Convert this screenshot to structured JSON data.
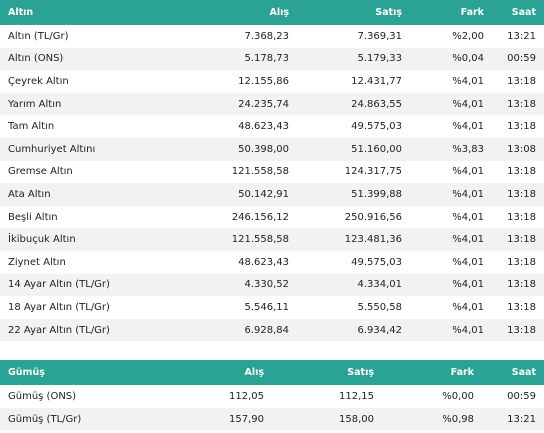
{
  "gold": {
    "headers": [
      "Altın",
      "Alış",
      "Satış",
      "Fark",
      "Saat"
    ],
    "rows": [
      [
        "Altın (TL/Gr)",
        "7.368,23",
        "7.369,31",
        "%2,00",
        "13:21"
      ],
      [
        "Altın (ONS)",
        "5.178,73",
        "5.179,33",
        "%0,04",
        "00:59"
      ],
      [
        "Çeyrek Altın",
        "12.155,86",
        "12.431,77",
        "%4,01",
        "13:18"
      ],
      [
        "Yarım Altın",
        "24.235,74",
        "24.863,55",
        "%4,01",
        "13:18"
      ],
      [
        "Tam Altın",
        "48.623,43",
        "49.575,03",
        "%4,01",
        "13:18"
      ],
      [
        "Cumhuriyet Altını",
        "50.398,00",
        "51.160,00",
        "%3,83",
        "13:08"
      ],
      [
        "Gremse Altın",
        "121.558,58",
        "124.317,75",
        "%4,01",
        "13:18"
      ],
      [
        "Ata Altın",
        "50.142,91",
        "51.399,88",
        "%4,01",
        "13:18"
      ],
      [
        "Beşli Altın",
        "246.156,12",
        "250.916,56",
        "%4,01",
        "13:18"
      ],
      [
        "İkibuçuk Altın",
        "121.558,58",
        "123.481,36",
        "%4,01",
        "13:18"
      ],
      [
        "Ziynet Altın",
        "48.623,43",
        "49.575,03",
        "%4,01",
        "13:18"
      ],
      [
        "14 Ayar Altın (TL/Gr)",
        "4.330,52",
        "4.334,01",
        "%4,01",
        "13:18"
      ],
      [
        "18 Ayar Altın (TL/Gr)",
        "5.546,11",
        "5.550,58",
        "%4,01",
        "13:18"
      ],
      [
        "22 Ayar Altın (TL/Gr)",
        "6.928,84",
        "6.934,42",
        "%4,01",
        "13:18"
      ]
    ]
  },
  "silver": {
    "headers": [
      "Gümüş",
      "Alış",
      "Satış",
      "Fark",
      "Saat"
    ],
    "rows": [
      [
        "Gümüş (ONS)",
        "112,05",
        "112,15",
        "%0,00",
        "00:59"
      ],
      [
        "Gümüş (TL/Gr)",
        "157,90",
        "158,00",
        "%0,98",
        "13:21"
      ]
    ]
  },
  "colors": {
    "header_bg": "#2aa394",
    "stripe": "#f2f2f2"
  }
}
